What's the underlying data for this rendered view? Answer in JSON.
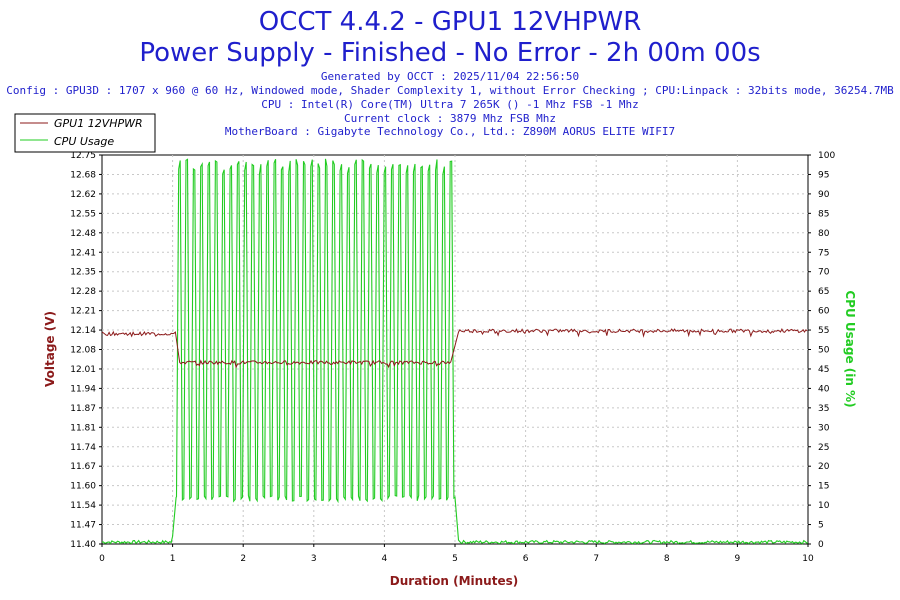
{
  "header": {
    "title": "OCCT 4.4.2 - GPU1 12VHPWR",
    "subtitle": "Power Supply - Finished - No Error - 2h 00m 00s",
    "info": [
      "Generated by OCCT : 2025/11/04 22:56:50",
      "Config : GPU3D : 1707 x 960 @ 60 Hz, Windowed mode, Shader Complexity 1, without Error Checking ; CPU:Linpack : 32bits mode, 36254.7MB",
      "CPU : Intel(R) Core(TM) Ultra 7 265K () -1 Mhz FSB -1 Mhz",
      "Current clock : 3879 Mhz FSB  Mhz",
      "MotherBoard : Gigabyte Technology Co., Ltd.: Z890M AORUS ELITE WIFI7"
    ]
  },
  "legend": {
    "placement": "top-left",
    "items": [
      {
        "label": "GPU1 12VHPWR",
        "color": "#8b1a1a"
      },
      {
        "label": "CPU Usage",
        "color": "#22cc22"
      }
    ]
  },
  "chart_data": {
    "type": "line",
    "xlabel": "Duration (Minutes)",
    "ylabel": "Voltage (V)",
    "y2label": "CPU Usage (in %)",
    "xlim": [
      0,
      10
    ],
    "ylim": [
      11.4,
      12.75
    ],
    "y2lim": [
      0,
      100
    ],
    "x_ticks": [
      "0",
      "1",
      "2",
      "3",
      "4",
      "5",
      "6",
      "7",
      "8",
      "9",
      "10"
    ],
    "y_ticks": [
      "11.40",
      "11.47",
      "11.54",
      "11.60",
      "11.67",
      "11.74",
      "11.81",
      "11.87",
      "11.94",
      "12.01",
      "12.08",
      "12.14",
      "12.21",
      "12.28",
      "12.35",
      "12.41",
      "12.48",
      "12.55",
      "12.62",
      "12.68",
      "12.75"
    ],
    "y2_ticks": [
      "0",
      "5",
      "10",
      "15",
      "20",
      "25",
      "30",
      "35",
      "40",
      "45",
      "50",
      "55",
      "60",
      "65",
      "70",
      "75",
      "80",
      "85",
      "90",
      "95",
      "100"
    ],
    "grid": true,
    "series": [
      {
        "name": "GPU1 12VHPWR",
        "axis": "left",
        "color": "#8b1a1a",
        "segments": [
          {
            "x_start": 0.0,
            "x_end": 1.05,
            "value": 12.13,
            "noise": 0.006
          },
          {
            "x_start": 1.1,
            "x_end": 4.95,
            "value": 12.03,
            "noise": 0.006
          },
          {
            "x_start": 5.05,
            "x_end": 10.0,
            "value": 12.14,
            "noise": 0.006
          }
        ]
      },
      {
        "name": "CPU Usage",
        "axis": "right",
        "color": "#22cc22",
        "baseline_low": 0.5,
        "load_start": 1.05,
        "load_end": 5.0,
        "load_peak": 99,
        "load_trough": 11,
        "load_cycles": 38
      }
    ]
  }
}
